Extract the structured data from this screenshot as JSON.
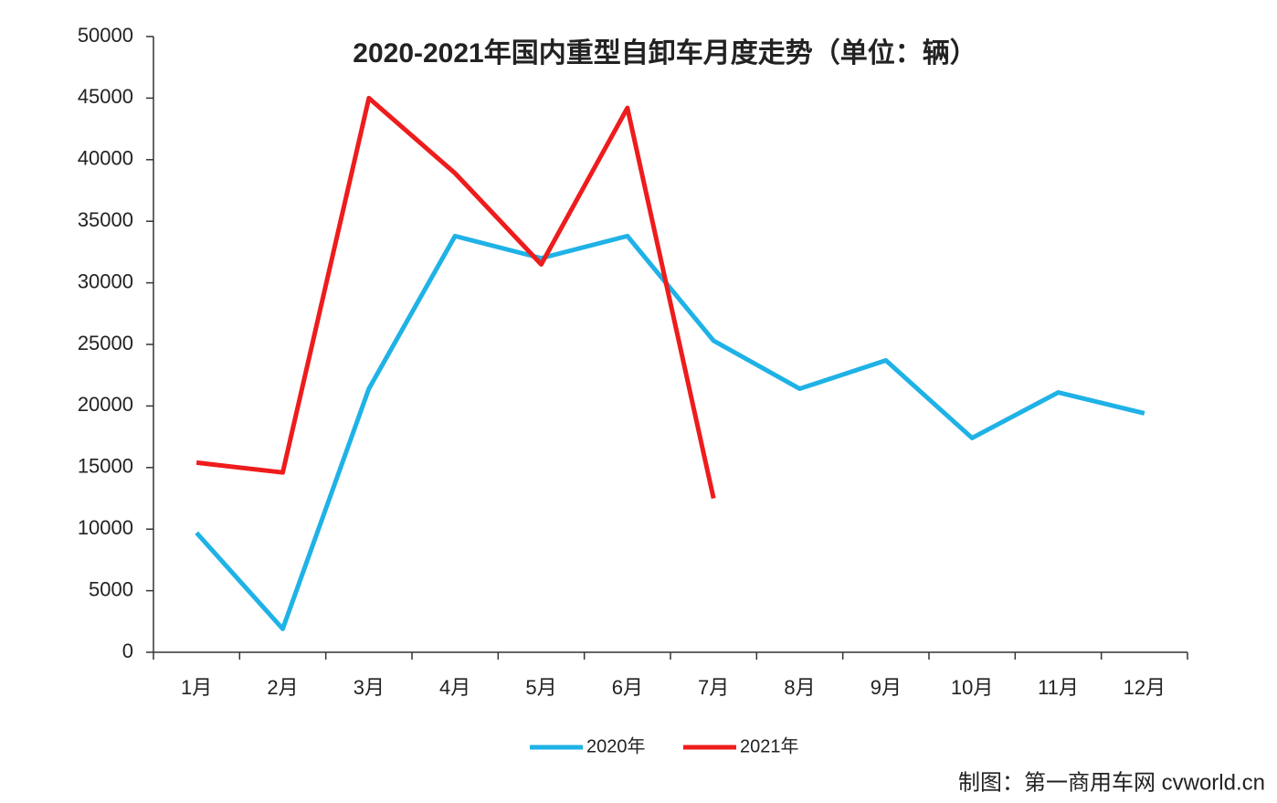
{
  "chart_data": {
    "type": "line",
    "title": "2020-2021年国内重型自卸车月度走势（单位：辆）",
    "categories": [
      "1月",
      "2月",
      "3月",
      "4月",
      "5月",
      "6月",
      "7月",
      "8月",
      "9月",
      "10月",
      "11月",
      "12月"
    ],
    "series": [
      {
        "name": "2020年",
        "color": "#1fb2e6",
        "values": [
          9700,
          1900,
          21400,
          33800,
          32000,
          33800,
          25300,
          21400,
          23700,
          17400,
          21100,
          19400
        ]
      },
      {
        "name": "2021年",
        "color": "#ee1c1c",
        "values": [
          15400,
          14600,
          45000,
          38900,
          31500,
          44200,
          12500,
          null,
          null,
          null,
          null,
          null
        ]
      }
    ],
    "ylim": [
      0,
      50000
    ],
    "yticks": [
      0,
      5000,
      10000,
      15000,
      20000,
      25000,
      30000,
      35000,
      40000,
      45000,
      50000
    ],
    "legend": "bottom",
    "note": "制图：第一商用车网 cvworld.cn"
  }
}
